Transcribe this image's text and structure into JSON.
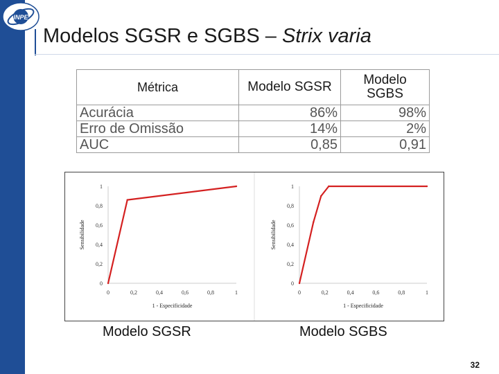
{
  "title": {
    "main": "Modelos SGSR e SGBS – ",
    "italic": "Strix varia"
  },
  "logo": {
    "text": "INPE"
  },
  "table": {
    "headers": [
      "Métrica",
      "Modelo SGSR",
      "Modelo SGBS"
    ],
    "rows": [
      {
        "label": "Acurácia",
        "sgsr": "86%",
        "sgbs": "98%"
      },
      {
        "label": "Erro de Omissão",
        "sgsr": "14%",
        "sgbs": "2%"
      },
      {
        "label": "AUC",
        "sgsr": "0,85",
        "sgbs": "0,91"
      }
    ]
  },
  "chart_data": [
    {
      "type": "line",
      "title": "",
      "xlabel": "1 - Especificidade",
      "ylabel": "Sensibilidade",
      "xlim": [
        0,
        1
      ],
      "ylim": [
        0,
        1
      ],
      "xticks": [
        "0",
        "0,2",
        "0,4",
        "0,6",
        "0,8",
        "1"
      ],
      "yticks": [
        "0",
        "0,2",
        "0,4",
        "0,6",
        "0,8",
        "1"
      ],
      "series": [
        {
          "name": "SGSR",
          "x": [
            0,
            0.15,
            1
          ],
          "y": [
            0,
            0.86,
            1
          ]
        }
      ],
      "color": "#d42020"
    },
    {
      "type": "line",
      "title": "",
      "xlabel": "1 - Especificidade",
      "ylabel": "Sensibilidade",
      "xlim": [
        0,
        1
      ],
      "ylim": [
        0,
        1
      ],
      "xticks": [
        "0",
        "0,2",
        "0,4",
        "0,6",
        "0,8",
        "1"
      ],
      "yticks": [
        "0",
        "0,2",
        "0,4",
        "0,6",
        "0,8",
        "1"
      ],
      "series": [
        {
          "name": "SGBS",
          "x": [
            0,
            0.11,
            0.17,
            0.23,
            1
          ],
          "y": [
            0,
            0.63,
            0.9,
            1,
            1
          ]
        }
      ],
      "color": "#d42020"
    }
  ],
  "captions": [
    "Modelo SGSR",
    "Modelo SGBS"
  ],
  "page_number": "32",
  "colors": {
    "accent": "#1f4e96",
    "line": "#d42020"
  }
}
